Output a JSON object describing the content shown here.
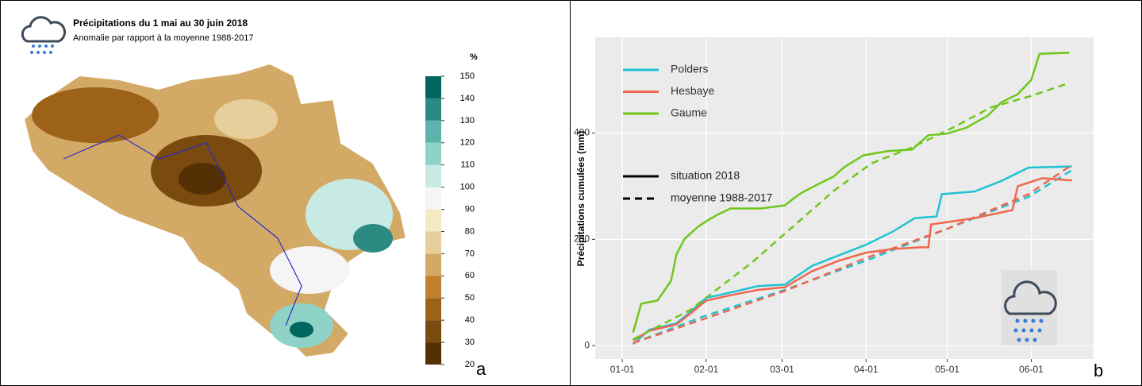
{
  "chart_data": [
    {
      "type": "map",
      "title": "Précipitations du 1 mai au 30 juin 2018",
      "subtitle": "Anomalie par rapport à la moyenne 1988-2017",
      "unit": "%",
      "panel_label": "a",
      "colorbar": {
        "lim": [
          20,
          150
        ],
        "ticks": [
          20,
          30,
          40,
          50,
          60,
          70,
          80,
          90,
          100,
          110,
          120,
          130,
          140,
          150
        ],
        "colors": [
          "#543005",
          "#7a4a0e",
          "#9b6218",
          "#bf812d",
          "#d2aa66",
          "#e7cf9b",
          "#f6e8c3",
          "#f5f5f5",
          "#c7eae5",
          "#8fd3c8",
          "#5ab4ac",
          "#2d8a80",
          "#01665e"
        ]
      }
    },
    {
      "type": "line",
      "ylabel": "Précipitations cumulées (mm)",
      "panel_label": "b",
      "xlim": [
        -10,
        174
      ],
      "ylim": [
        -25,
        580
      ],
      "xticks": [
        {
          "value": 0,
          "label": "01-01"
        },
        {
          "value": 31,
          "label": "02-01"
        },
        {
          "value": 59,
          "label": "03-01"
        },
        {
          "value": 90,
          "label": "04-01"
        },
        {
          "value": 120,
          "label": "05-01"
        },
        {
          "value": 151,
          "label": "06-01"
        }
      ],
      "yticks": [
        0,
        200,
        400
      ],
      "grid": true,
      "series": [
        {
          "name": "Polders",
          "color": "#1fc3d3",
          "situation": {
            "x": [
              4,
              10,
              20,
              25,
              31,
              40,
              50,
              60,
              70,
              80,
              90,
              100,
              108,
              116,
              118,
              130,
              140,
              150,
              166
            ],
            "values": [
              3,
              30,
              42,
              63,
              90,
              100,
              112,
              115,
              150,
              170,
              190,
              215,
              240,
              243,
              285,
              290,
              310,
              335,
              337
            ]
          },
          "moyenne": {
            "x": [
              4,
              30,
              60,
              90,
              120,
              150,
              166
            ],
            "values": [
              5,
              55,
              105,
              160,
              220,
              280,
              330
            ]
          }
        },
        {
          "name": "Hesbaye",
          "color": "#f0674e",
          "situation": {
            "x": [
              4,
              10,
              20,
              25,
              31,
              40,
              50,
              60,
              70,
              80,
              90,
              100,
              110,
              113,
              114,
              130,
              144,
              146,
              155,
              166
            ],
            "values": [
              10,
              28,
              40,
              60,
              85,
              95,
              105,
              110,
              140,
              160,
              175,
              182,
              185,
              185,
              228,
              240,
              255,
              300,
              315,
              311
            ]
          },
          "moyenne": {
            "x": [
              4,
              30,
              60,
              90,
              120,
              150,
              166
            ],
            "values": [
              5,
              50,
              103,
              165,
              220,
              285,
              340
            ]
          }
        },
        {
          "name": "Gaume",
          "color": "#6ec71a",
          "situation": {
            "x": [
              4,
              7,
              13,
              18,
              20,
              23,
              28,
              31,
              35,
              40,
              51,
              60,
              63,
              66,
              72,
              78,
              82,
              89,
              98,
              107,
              113,
              120,
              127,
              135,
              140,
              146,
              151,
              154,
              165
            ],
            "values": [
              25,
              79,
              85,
              122,
              172,
              201,
              224,
              234,
              246,
              258,
              258,
              264,
              276,
              287,
              303,
              318,
              336,
              358,
              366,
              369,
              396,
              399,
              410,
              433,
              458,
              473,
              500,
              549,
              551
            ]
          },
          "moyenne": {
            "x": [
              4,
              25,
              48,
              63,
              78,
              92,
              107,
              122,
              136,
              151,
              165
            ],
            "values": [
              12,
              67,
              157,
              224,
              291,
              343,
              373,
              410,
              448,
              470,
              494
            ]
          }
        }
      ],
      "linestyle_legend": [
        {
          "name": "situation 2018",
          "dashed": false
        },
        {
          "name": "moyenne 1988-2017",
          "dashed": true
        }
      ]
    }
  ]
}
